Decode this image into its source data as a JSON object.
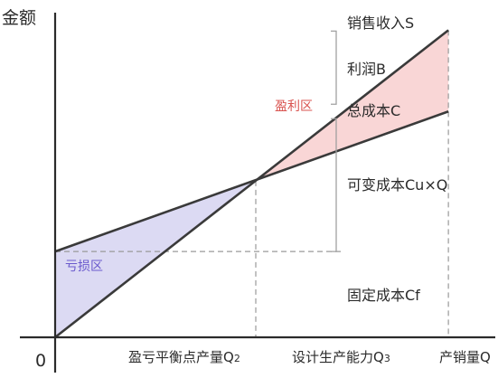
{
  "chart_data": {
    "type": "line",
    "ylabel": "金额",
    "xlabel": "产销量Q",
    "origin_label": "0",
    "xlim": [
      0,
      10
    ],
    "ylim": [
      0,
      10
    ],
    "series": [
      {
        "name": "销售收入S",
        "x": [
          0,
          9.8
        ],
        "y": [
          0,
          10.2
        ],
        "color": "#3a3a3a"
      },
      {
        "name": "总成本C",
        "x": [
          0,
          9.8
        ],
        "y": [
          2.85,
          7.5
        ],
        "color": "#3a3a3a"
      }
    ],
    "reference_lines": {
      "fixed_cost": {
        "y": 2.85,
        "color": "#9a9a9a",
        "style": "dashed"
      },
      "breakeven": {
        "x": 5.0,
        "y": 5.2,
        "label": "盈亏平衡点产量Q",
        "subscript": "2"
      },
      "capacity": {
        "x": 9.8,
        "label": "设计生产能力Q",
        "subscript": "3"
      }
    },
    "zones": [
      {
        "label": "亏损区",
        "fill": "#dcdaf3",
        "text_color": "#6a5acd"
      },
      {
        "label": "盈利区",
        "fill": "#f9d6d6",
        "text_color": "#d9534f"
      }
    ],
    "brackets": [
      {
        "label": "利润B"
      },
      {
        "label": "可变成本Cu×Q"
      },
      {
        "label": "固定成本Cf"
      }
    ]
  }
}
